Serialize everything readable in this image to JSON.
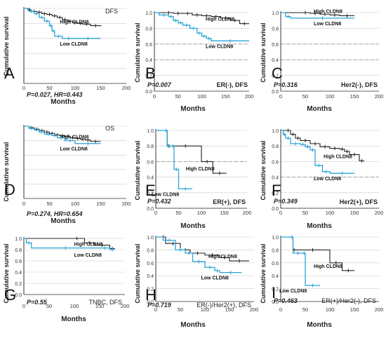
{
  "colors": {
    "high": "#222222",
    "low": "#29a3d6",
    "ref": "#999999",
    "axis": "#333333"
  },
  "chart_data": [
    {
      "type": "line",
      "panel_letter": "A",
      "ylabel": "Cumulative survival",
      "xlabel": "Months",
      "xlim": [
        0,
        200
      ],
      "ylim": [
        0,
        1
      ],
      "xticks": [
        "0",
        "50",
        "100",
        "150",
        "200"
      ],
      "yticks": [],
      "corner_label": "DFS",
      "stat_text": "P=0.027, HR=0.443",
      "footer_label": "",
      "ref_lines": [],
      "series": [
        {
          "name": "High CLDN8",
          "x": [
            0,
            8,
            15,
            25,
            35,
            45,
            55,
            65,
            75,
            85,
            95,
            105,
            115,
            130,
            150
          ],
          "y": [
            1.0,
            0.98,
            0.96,
            0.95,
            0.93,
            0.92,
            0.9,
            0.88,
            0.85,
            0.83,
            0.81,
            0.8,
            0.79,
            0.77,
            0.76
          ]
        },
        {
          "name": "Low CLDN8",
          "x": [
            0,
            10,
            20,
            30,
            40,
            50,
            55,
            60,
            75,
            100,
            150
          ],
          "y": [
            1.0,
            0.96,
            0.93,
            0.88,
            0.83,
            0.77,
            0.7,
            0.63,
            0.6,
            0.6,
            0.6
          ]
        }
      ]
    },
    {
      "type": "line",
      "panel_letter": "B",
      "ylabel": "Cumulative survival",
      "xlabel": "Months",
      "xlim": [
        0,
        200
      ],
      "ylim": [
        0,
        1
      ],
      "xticks": [
        "0",
        "50",
        "100",
        "150",
        "200"
      ],
      "yticks": [
        "0.0",
        "0.2",
        "0.4",
        "0.6",
        "0.8",
        "1.0"
      ],
      "corner_label": "",
      "stat_text": "P=0.007",
      "footer_label": "ER(-), DFS",
      "ref_lines": [
        0.4,
        0.6
      ],
      "series": [
        {
          "name": "High CLDN8",
          "x": [
            0,
            20,
            40,
            60,
            80,
            100,
            120,
            140,
            160,
            180,
            200
          ],
          "y": [
            1.0,
            1.0,
            0.99,
            0.99,
            0.97,
            0.96,
            0.95,
            0.93,
            0.9,
            0.86,
            0.86
          ]
        },
        {
          "name": "Low CLDN8",
          "x": [
            0,
            10,
            30,
            40,
            50,
            60,
            75,
            90,
            100,
            110,
            120,
            200
          ],
          "y": [
            1.0,
            0.97,
            0.95,
            0.9,
            0.87,
            0.84,
            0.8,
            0.74,
            0.7,
            0.67,
            0.64,
            0.64
          ]
        }
      ]
    },
    {
      "type": "line",
      "panel_letter": "C",
      "ylabel": "Cumulative survival",
      "xlabel": "Months",
      "xlim": [
        0,
        200
      ],
      "ylim": [
        0,
        1
      ],
      "xticks": [
        "0",
        "50",
        "100",
        "150",
        "200"
      ],
      "yticks": [
        "0.0",
        "0.2",
        "0.4",
        "0.6",
        "0.8",
        "1.0"
      ],
      "corner_label": "",
      "stat_text": "P=0.316",
      "footer_label": "Her2(-), DFS",
      "ref_lines": [
        0.4,
        0.6
      ],
      "series": [
        {
          "name": "High CLDN8",
          "x": [
            0,
            40,
            60,
            80,
            100,
            120,
            150
          ],
          "y": [
            1.0,
            1.0,
            0.99,
            0.98,
            0.97,
            0.96,
            0.96
          ]
        },
        {
          "name": "Low CLDN8",
          "x": [
            0,
            10,
            20,
            150
          ],
          "y": [
            1.0,
            0.95,
            0.93,
            0.93
          ]
        }
      ]
    },
    {
      "type": "line",
      "panel_letter": "D",
      "ylabel": "Cumulative survival",
      "xlabel": "Months",
      "xlim": [
        0,
        200
      ],
      "ylim": [
        0,
        1
      ],
      "xticks": [
        "0",
        "50",
        "100",
        "150",
        "200"
      ],
      "yticks": [],
      "corner_label": "OS",
      "stat_text": "P=0.274, HR=0.654",
      "footer_label": "",
      "ref_lines": [],
      "series": [
        {
          "name": "High CLDN8",
          "x": [
            0,
            10,
            20,
            30,
            40,
            50,
            60,
            70,
            80,
            90,
            100,
            110,
            120,
            130,
            150
          ],
          "y": [
            1.0,
            0.98,
            0.96,
            0.94,
            0.92,
            0.9,
            0.88,
            0.87,
            0.86,
            0.84,
            0.83,
            0.82,
            0.81,
            0.79,
            0.79
          ]
        },
        {
          "name": "Low CLDN8",
          "x": [
            0,
            10,
            20,
            30,
            40,
            55,
            65,
            80,
            100,
            150
          ],
          "y": [
            1.0,
            0.97,
            0.95,
            0.92,
            0.89,
            0.87,
            0.84,
            0.8,
            0.76,
            0.76
          ]
        }
      ]
    },
    {
      "type": "line",
      "panel_letter": "E",
      "ylabel": "Cumulative survival",
      "xlabel": "Months",
      "xlim": [
        0,
        200
      ],
      "ylim": [
        0,
        1
      ],
      "xticks": [
        "0",
        "50",
        "100",
        "150",
        "200"
      ],
      "yticks": [
        "0.0",
        "0.2",
        "0.4",
        "0.6",
        "0.8",
        "1.0"
      ],
      "corner_label": "",
      "stat_text": "P=0.432",
      "footer_label": "ER(+), DFS",
      "ref_lines": [
        0.0,
        0.6
      ],
      "series": [
        {
          "name": "High CLDN8",
          "x": [
            0,
            25,
            30,
            100,
            125,
            155
          ],
          "y": [
            1.0,
            0.8,
            0.8,
            0.6,
            0.45,
            0.45
          ]
        },
        {
          "name": "Low CLDN8",
          "x": [
            0,
            20,
            25,
            35,
            40,
            50,
            80
          ],
          "y": [
            1.0,
            1.0,
            0.8,
            0.8,
            0.5,
            0.25,
            0.25
          ]
        }
      ]
    },
    {
      "type": "line",
      "panel_letter": "F",
      "ylabel": "Cumulative survival",
      "xlabel": "Months",
      "xlim": [
        0,
        200
      ],
      "ylim": [
        0,
        1
      ],
      "xticks": [
        "0",
        "50",
        "100",
        "150",
        "200"
      ],
      "yticks": [
        "0.0",
        "0.2",
        "0.4",
        "0.6",
        "0.8",
        "1.0"
      ],
      "corner_label": "",
      "stat_text": "P=0.349",
      "footer_label": "Her2(+), DFS",
      "ref_lines": [
        0.0,
        0.4
      ],
      "series": [
        {
          "name": "High CLDN8",
          "x": [
            0,
            10,
            20,
            30,
            40,
            60,
            80,
            100,
            120,
            130,
            140,
            160,
            170
          ],
          "y": [
            1.0,
            1.0,
            0.95,
            0.9,
            0.87,
            0.83,
            0.79,
            0.77,
            0.76,
            0.73,
            0.69,
            0.61,
            0.61
          ]
        },
        {
          "name": "Low CLDN8",
          "x": [
            0,
            5,
            10,
            20,
            40,
            50,
            60,
            70,
            85,
            100,
            150
          ],
          "y": [
            1.0,
            0.95,
            0.9,
            0.83,
            0.82,
            0.79,
            0.75,
            0.55,
            0.47,
            0.45,
            0.45
          ]
        }
      ]
    },
    {
      "type": "line",
      "panel_letter": "G",
      "ylabel": "Cumulative survival",
      "xlabel": "Months",
      "xlim": [
        0,
        200
      ],
      "ylim": [
        0,
        1
      ],
      "xticks": [
        "0",
        "50",
        "100",
        "150",
        "200"
      ],
      "yticks": [
        "0.0",
        "0.2",
        "0.4",
        "0.6",
        "0.8",
        "1.0"
      ],
      "corner_label": "",
      "stat_text": "P=0.55",
      "footer_label": "TNBC, DFS",
      "ref_lines": [],
      "series": [
        {
          "name": "High CLDN8",
          "x": [
            0,
            90,
            120,
            140,
            170,
            180
          ],
          "y": [
            1.0,
            1.0,
            0.92,
            0.88,
            0.82,
            0.82
          ]
        },
        {
          "name": "Low CLDN8",
          "x": [
            0,
            5,
            15,
            150,
            170,
            180
          ],
          "y": [
            1.0,
            0.92,
            0.83,
            0.83,
            0.8,
            0.8
          ]
        }
      ]
    },
    {
      "type": "line",
      "panel_letter": "H",
      "ylabel": "Cumulative survival",
      "xlabel": "Months",
      "xlim": [
        0,
        200
      ],
      "ylim": [
        0,
        1
      ],
      "xticks": [
        "0",
        "50",
        "100",
        "150",
        "200"
      ],
      "yticks": [
        "0.0",
        "0.2",
        "0.4",
        "0.6",
        "0.8",
        "1.0"
      ],
      "corner_label": "",
      "stat_text": "P=0.719",
      "footer_label": "ER(-)/Her2(+), DFS",
      "ref_lines": [],
      "series": [
        {
          "name": "High CLDN8",
          "x": [
            0,
            10,
            20,
            50,
            70,
            100,
            130,
            150,
            190
          ],
          "y": [
            1.0,
            1.0,
            0.9,
            0.8,
            0.75,
            0.72,
            0.68,
            0.63,
            0.63
          ]
        },
        {
          "name": "Low CLDN8",
          "x": [
            0,
            15,
            40,
            60,
            75,
            100,
            120,
            130,
            175
          ],
          "y": [
            1.0,
            0.95,
            0.8,
            0.75,
            0.62,
            0.53,
            0.48,
            0.45,
            0.45
          ]
        }
      ]
    },
    {
      "type": "line",
      "panel_letter": "I",
      "ylabel": "Cumulative survival",
      "xlabel": "Months",
      "xlim": [
        0,
        200
      ],
      "ylim": [
        0,
        1
      ],
      "xticks": [
        "0",
        "50",
        "100",
        "150",
        "200"
      ],
      "yticks": [
        "0.0",
        "0.2",
        "0.4",
        "0.6",
        "0.8",
        "1.0"
      ],
      "corner_label": "",
      "stat_text": "P=0.463",
      "footer_label": "ER(+)/Her2(-), DFS",
      "ref_lines": [],
      "series": [
        {
          "name": "High CLDN8",
          "x": [
            0,
            25,
            30,
            100,
            125,
            150
          ],
          "y": [
            1.0,
            0.8,
            0.8,
            0.6,
            0.48,
            0.48
          ]
        },
        {
          "name": "Low CLDN8",
          "x": [
            0,
            20,
            25,
            45,
            50,
            80
          ],
          "y": [
            1.0,
            1.0,
            0.75,
            0.75,
            0.25,
            0.25
          ]
        }
      ]
    }
  ]
}
